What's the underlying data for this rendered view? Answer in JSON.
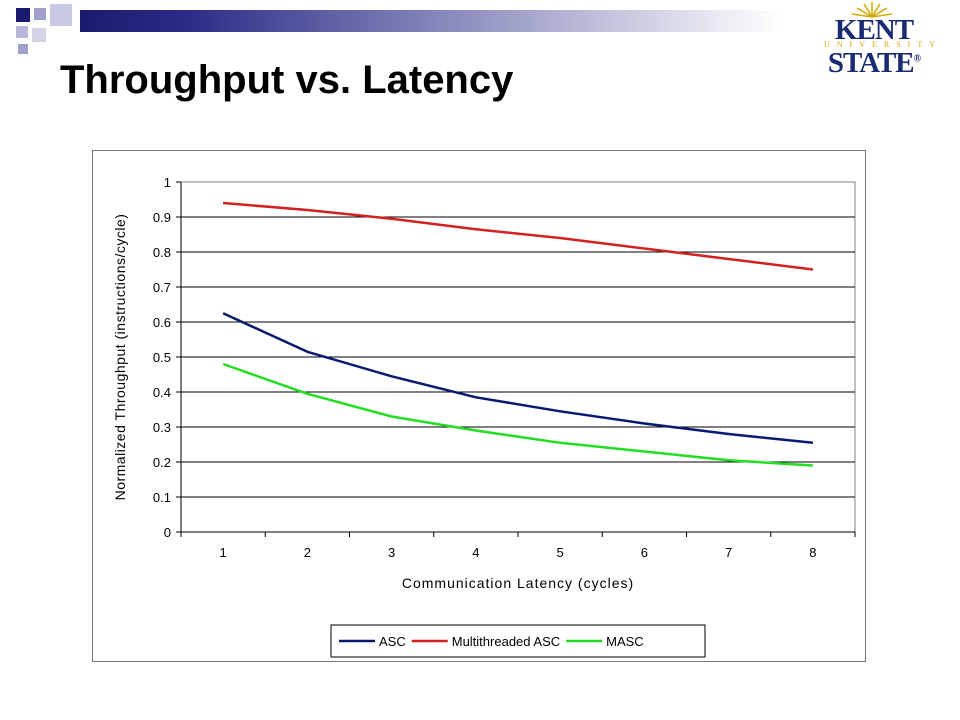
{
  "slide": {
    "title": "Throughput vs. Latency",
    "logo": {
      "main": "KENT STATE",
      "registered": "®",
      "sub": "UNIVERSITY"
    },
    "colors": {
      "bar_dark": "#1a1a6e",
      "square_light": "#9fa0cc",
      "logo_blue": "#1a2a72",
      "logo_gold": "#d4a800"
    }
  },
  "chart_data": {
    "type": "line",
    "xlabel": "Communication Latency (cycles)",
    "ylabel": "Normalized Throughput (instructions/cycle)",
    "x": [
      1,
      2,
      3,
      4,
      5,
      6,
      7,
      8
    ],
    "xtick_labels": [
      "1",
      "2",
      "3",
      "4",
      "5",
      "6",
      "7",
      "8"
    ],
    "ylim": [
      0,
      1
    ],
    "ytick_labels": [
      "0",
      "0.1",
      "0.2",
      "0.3",
      "0.4",
      "0.5",
      "0.6",
      "0.7",
      "0.8",
      "0.9",
      "1"
    ],
    "grid": true,
    "legend_position": "bottom",
    "series": [
      {
        "name": "ASC",
        "color": "#0a1a6e",
        "values": [
          0.625,
          0.515,
          0.445,
          0.385,
          0.345,
          0.31,
          0.28,
          0.255
        ]
      },
      {
        "name": "Multithreaded ASC",
        "color": "#d42020",
        "values": [
          0.94,
          0.92,
          0.895,
          0.865,
          0.84,
          0.81,
          0.78,
          0.75
        ]
      },
      {
        "name": "MASC",
        "color": "#22dd22",
        "values": [
          0.48,
          0.395,
          0.33,
          0.29,
          0.255,
          0.23,
          0.205,
          0.19
        ]
      }
    ]
  }
}
